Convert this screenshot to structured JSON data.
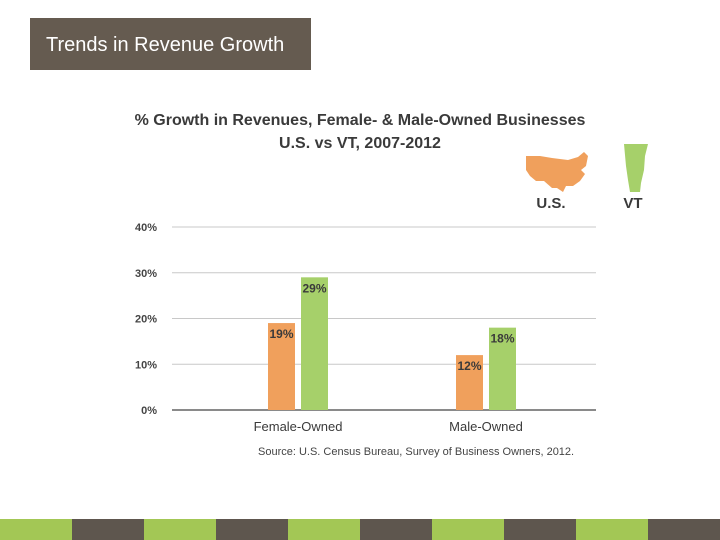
{
  "slide": {
    "title": "Trends in Revenue Growth"
  },
  "chart_data": {
    "type": "bar",
    "title": "% Growth in Revenues, Female- & Male-Owned Businesses",
    "subtitle": "U.S. vs VT, 2007-2012",
    "categories": [
      "Female-Owned",
      "Male-Owned"
    ],
    "series": [
      {
        "name": "U.S.",
        "values": [
          19,
          12
        ],
        "labels": [
          "19%",
          "12%"
        ],
        "color": "#f0a05c"
      },
      {
        "name": "VT",
        "values": [
          29,
          18
        ],
        "labels": [
          "29%",
          "18%"
        ],
        "color": "#a6d06a"
      }
    ],
    "ylim": [
      0,
      40
    ],
    "yticks": [
      "0%",
      "10%",
      "20%",
      "30%",
      "40%"
    ],
    "ytick_values": [
      0,
      10,
      20,
      30,
      40
    ],
    "grid": true,
    "legend": "top-right",
    "source": "Source: U.S. Census Bureau, Survey of Business Owners, 2012."
  },
  "footer_colors": [
    "#a3c755",
    "#5e564e"
  ]
}
